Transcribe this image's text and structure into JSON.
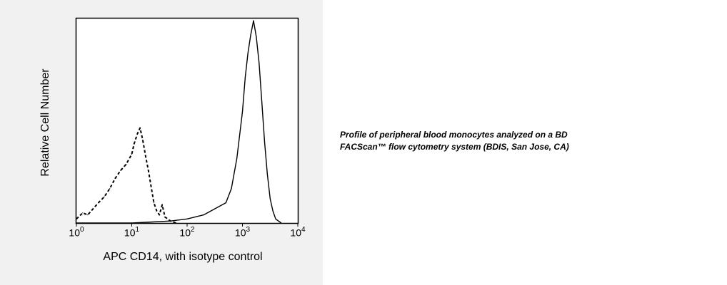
{
  "chart_data": {
    "type": "line",
    "title": "",
    "xlabel": "APC CD14, with isotype control",
    "ylabel": "Relative Cell Number",
    "xscale": "log",
    "xlim": [
      1,
      10000
    ],
    "ylim": [
      0,
      1
    ],
    "x_ticks": [
      {
        "base": "10",
        "exp": "0",
        "value": 1
      },
      {
        "base": "10",
        "exp": "1",
        "value": 10
      },
      {
        "base": "10",
        "exp": "2",
        "value": 100
      },
      {
        "base": "10",
        "exp": "3",
        "value": 1000
      },
      {
        "base": "10",
        "exp": "4",
        "value": 10000
      }
    ],
    "grid": false,
    "legend": false,
    "series": [
      {
        "line_style": "dashed",
        "color": "#000000",
        "x": [
          1.0,
          1.3,
          1.6,
          2.0,
          2.5,
          3.2,
          4.0,
          5.0,
          6.3,
          7.9,
          10.0,
          11.0,
          12.6,
          14.1,
          15.8,
          17.8,
          20.0,
          22.4,
          25.1,
          28.2,
          31.6,
          35.5,
          39.8,
          50.1,
          63.1
        ],
        "y": [
          0.02,
          0.05,
          0.04,
          0.07,
          0.1,
          0.13,
          0.17,
          0.22,
          0.26,
          0.29,
          0.34,
          0.39,
          0.44,
          0.47,
          0.41,
          0.33,
          0.26,
          0.18,
          0.1,
          0.06,
          0.04,
          0.09,
          0.03,
          0.01,
          0.0
        ]
      },
      {
        "line_style": "solid",
        "color": "#000000",
        "x": [
          1.0,
          10.0,
          50.1,
          100.0,
          199.5,
          316.2,
          501.2,
          631.0,
          794.3,
          1000.0,
          1122.0,
          1258.9,
          1412.5,
          1584.9,
          1778.3,
          1995.3,
          2238.7,
          2511.9,
          2818.4,
          3162.3,
          3548.1,
          3981.1,
          5011.9
        ],
        "y": [
          0.0,
          0.0,
          0.01,
          0.02,
          0.04,
          0.07,
          0.1,
          0.17,
          0.32,
          0.55,
          0.72,
          0.84,
          0.93,
          1.0,
          0.92,
          0.79,
          0.6,
          0.4,
          0.24,
          0.12,
          0.06,
          0.02,
          0.0
        ]
      }
    ]
  },
  "caption": {
    "line1": "Profile of peripheral blood monocytes analyzed on a BD",
    "line2": "FACScan™ flow cytometry system (BDIS, San Jose, CA)"
  }
}
